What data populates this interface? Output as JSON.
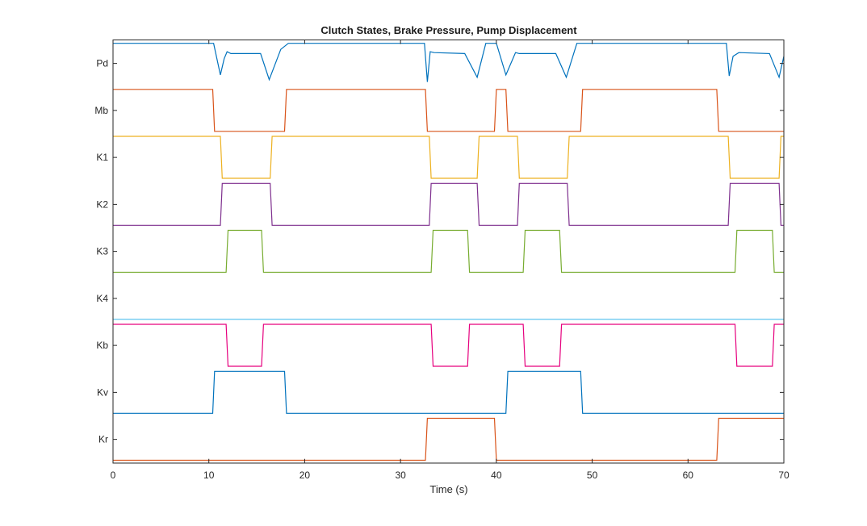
{
  "figure": {
    "background": "#ffffff"
  },
  "chart_data": {
    "type": "line",
    "title": "Clutch States, Brake Pressure, Pump Displacement",
    "xlabel": "Time (s)",
    "ylabel": "",
    "xlim": [
      0,
      70
    ],
    "x_ticks": [
      0,
      10,
      20,
      30,
      40,
      50,
      60,
      70
    ],
    "grid": false,
    "legend": "none",
    "lane_high": 0.9,
    "lane_low": 0.0,
    "series": [
      {
        "name": "Pd",
        "color": "#0072BD",
        "style": "pump",
        "x": [
          0,
          10.5,
          11.2,
          11.6,
          11.9,
          12.3,
          15.4,
          16.3,
          17.5,
          18.3,
          32.5,
          32.8,
          33.1,
          33.5,
          36.7,
          38.0,
          38.9,
          40.0,
          41.0,
          42.0,
          42.4,
          43.3,
          46.2,
          47.3,
          48.4,
          64.0,
          64.3,
          64.7,
          65.3,
          68.5,
          69.5,
          70.0
        ],
        "y": [
          0.88,
          0.88,
          0.2,
          0.55,
          0.7,
          0.66,
          0.66,
          0.1,
          0.75,
          0.88,
          0.88,
          0.05,
          0.7,
          0.68,
          0.66,
          0.15,
          0.88,
          0.88,
          0.2,
          0.68,
          0.66,
          0.66,
          0.66,
          0.15,
          0.88,
          0.88,
          0.18,
          0.6,
          0.68,
          0.66,
          0.15,
          0.6
        ]
      },
      {
        "name": "Mb",
        "color": "#D95319",
        "x": [
          0,
          10.4,
          10.6,
          17.9,
          18.1,
          32.6,
          32.8,
          39.8,
          40.0,
          41.0,
          41.2,
          48.8,
          49.0,
          63.0,
          63.2,
          70.0
        ],
        "y": [
          0.9,
          0.9,
          0.0,
          0.0,
          0.9,
          0.9,
          0.0,
          0.0,
          0.9,
          0.9,
          0.0,
          0.0,
          0.9,
          0.9,
          0.0,
          0.0
        ]
      },
      {
        "name": "K1",
        "color": "#EDB120",
        "x": [
          0,
          11.2,
          11.4,
          16.4,
          16.6,
          33.0,
          33.2,
          38.0,
          38.2,
          42.2,
          42.4,
          47.4,
          47.6,
          64.2,
          64.4,
          69.5,
          69.7,
          70.0
        ],
        "y": [
          0.9,
          0.9,
          0.0,
          0.0,
          0.9,
          0.9,
          0.0,
          0.0,
          0.9,
          0.9,
          0.0,
          0.0,
          0.9,
          0.9,
          0.0,
          0.0,
          0.9,
          0.9
        ]
      },
      {
        "name": "K2",
        "color": "#7E2F8E",
        "x": [
          0,
          11.2,
          11.4,
          16.4,
          16.6,
          33.0,
          33.2,
          38.0,
          38.2,
          42.2,
          42.4,
          47.4,
          47.6,
          64.2,
          64.4,
          69.5,
          69.7,
          70.0
        ],
        "y": [
          0.0,
          0.0,
          0.9,
          0.9,
          0.0,
          0.0,
          0.9,
          0.9,
          0.0,
          0.0,
          0.9,
          0.9,
          0.0,
          0.0,
          0.9,
          0.9,
          0.0,
          0.0
        ]
      },
      {
        "name": "K3",
        "color": "#77AC30",
        "x": [
          0,
          11.8,
          12.0,
          15.5,
          15.7,
          33.2,
          33.4,
          37.0,
          37.2,
          42.8,
          43.0,
          46.6,
          46.8,
          64.9,
          65.1,
          68.8,
          69.0,
          70.0
        ],
        "y": [
          0.0,
          0.0,
          0.9,
          0.9,
          0.0,
          0.0,
          0.9,
          0.9,
          0.0,
          0.0,
          0.9,
          0.9,
          0.0,
          0.0,
          0.9,
          0.9,
          0.0,
          0.0
        ]
      },
      {
        "name": "K4",
        "color": "#4DBEEE",
        "x": [
          0,
          70
        ],
        "y": [
          0.0,
          0.0
        ]
      },
      {
        "name": "Kb",
        "color": "#E6007E",
        "x": [
          0,
          11.8,
          12.0,
          15.5,
          15.7,
          33.2,
          33.4,
          37.0,
          37.2,
          42.8,
          43.0,
          46.6,
          46.8,
          64.9,
          65.1,
          68.8,
          69.0,
          70.0
        ],
        "y": [
          0.9,
          0.9,
          0.0,
          0.0,
          0.9,
          0.9,
          0.0,
          0.0,
          0.9,
          0.9,
          0.0,
          0.0,
          0.9,
          0.9,
          0.0,
          0.0,
          0.9,
          0.9
        ]
      },
      {
        "name": "Kv",
        "color": "#0072BD",
        "x": [
          0,
          10.4,
          10.6,
          17.9,
          18.1,
          41.0,
          41.2,
          48.8,
          49.0,
          70.0
        ],
        "y": [
          0.0,
          0.0,
          0.9,
          0.9,
          0.0,
          0.0,
          0.9,
          0.9,
          0.0,
          0.0
        ]
      },
      {
        "name": "Kr",
        "color": "#D95319",
        "x": [
          0,
          32.6,
          32.8,
          39.8,
          40.0,
          63.0,
          63.2,
          70.0
        ],
        "y": [
          0.0,
          0.0,
          0.9,
          0.9,
          0.0,
          0.0,
          0.9,
          0.9
        ]
      }
    ]
  }
}
